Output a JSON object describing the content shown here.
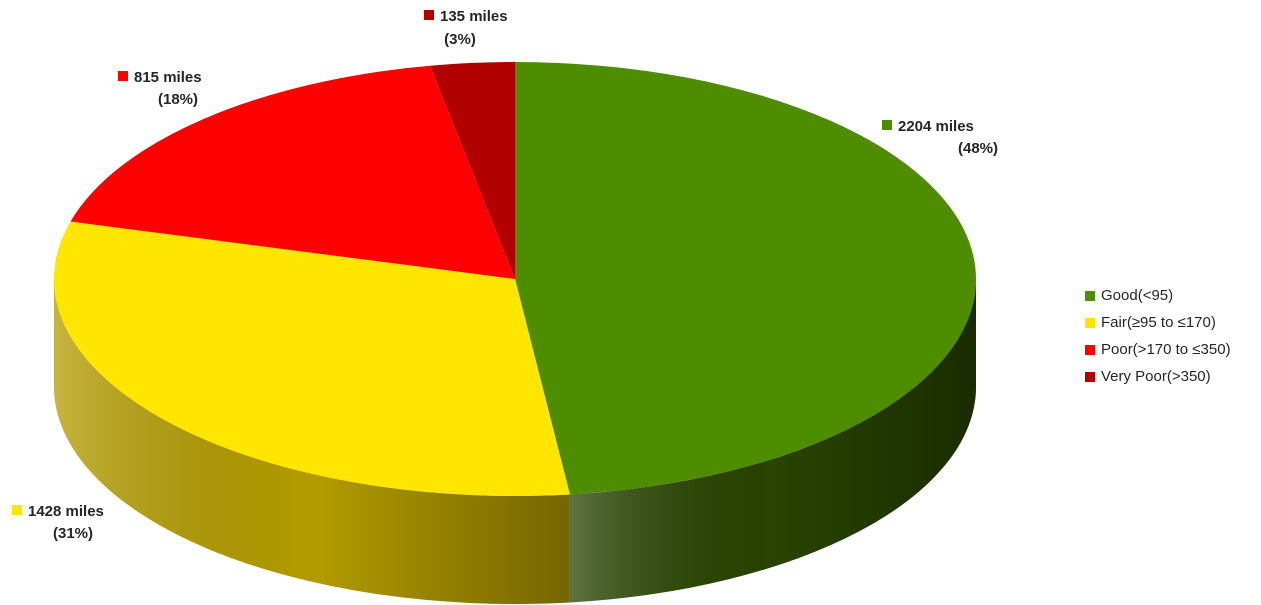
{
  "chart_data": {
    "type": "pie",
    "style": "3d",
    "categories": [
      "Good(<95)",
      "Fair(≥95 to ≤170)",
      "Poor(>170 to ≤350)",
      "Very Poor(>350)"
    ],
    "values": [
      2204,
      1428,
      815,
      135
    ],
    "units": "miles",
    "data_labels": [
      {
        "value": "2204 miles",
        "percent": "(48%)"
      },
      {
        "value": "1428 miles",
        "percent": "(31%)"
      },
      {
        "value": "815 miles",
        "percent": "(18%)"
      },
      {
        "value": "135 miles",
        "percent": "(3%)"
      }
    ],
    "colors": [
      "#4e8c00",
      "#ffe600",
      "#ff0000",
      "#b00000"
    ],
    "side_colors": [
      "#284400",
      "#b39c00",
      "#a00000",
      "#6a0000"
    ],
    "legend_position": "right"
  }
}
